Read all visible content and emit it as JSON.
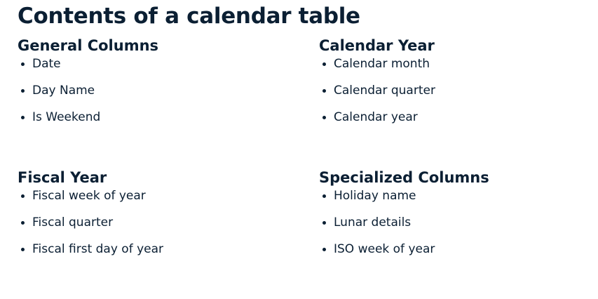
{
  "title": "Contents of a calendar table",
  "colors": {
    "text": "#0b1f33",
    "background": "#ffffff"
  },
  "sections": [
    {
      "heading": "General Columns",
      "items": [
        "Date",
        "Day Name",
        "Is Weekend"
      ]
    },
    {
      "heading": "Calendar Year",
      "items": [
        "Calendar month",
        "Calendar quarter",
        "Calendar year"
      ]
    },
    {
      "heading": "Fiscal Year",
      "items": [
        "Fiscal week of year",
        "Fiscal quarter",
        "Fiscal first day of year"
      ]
    },
    {
      "heading": "Specialized Columns",
      "items": [
        "Holiday name",
        "Lunar details",
        "ISO week of year"
      ]
    }
  ]
}
